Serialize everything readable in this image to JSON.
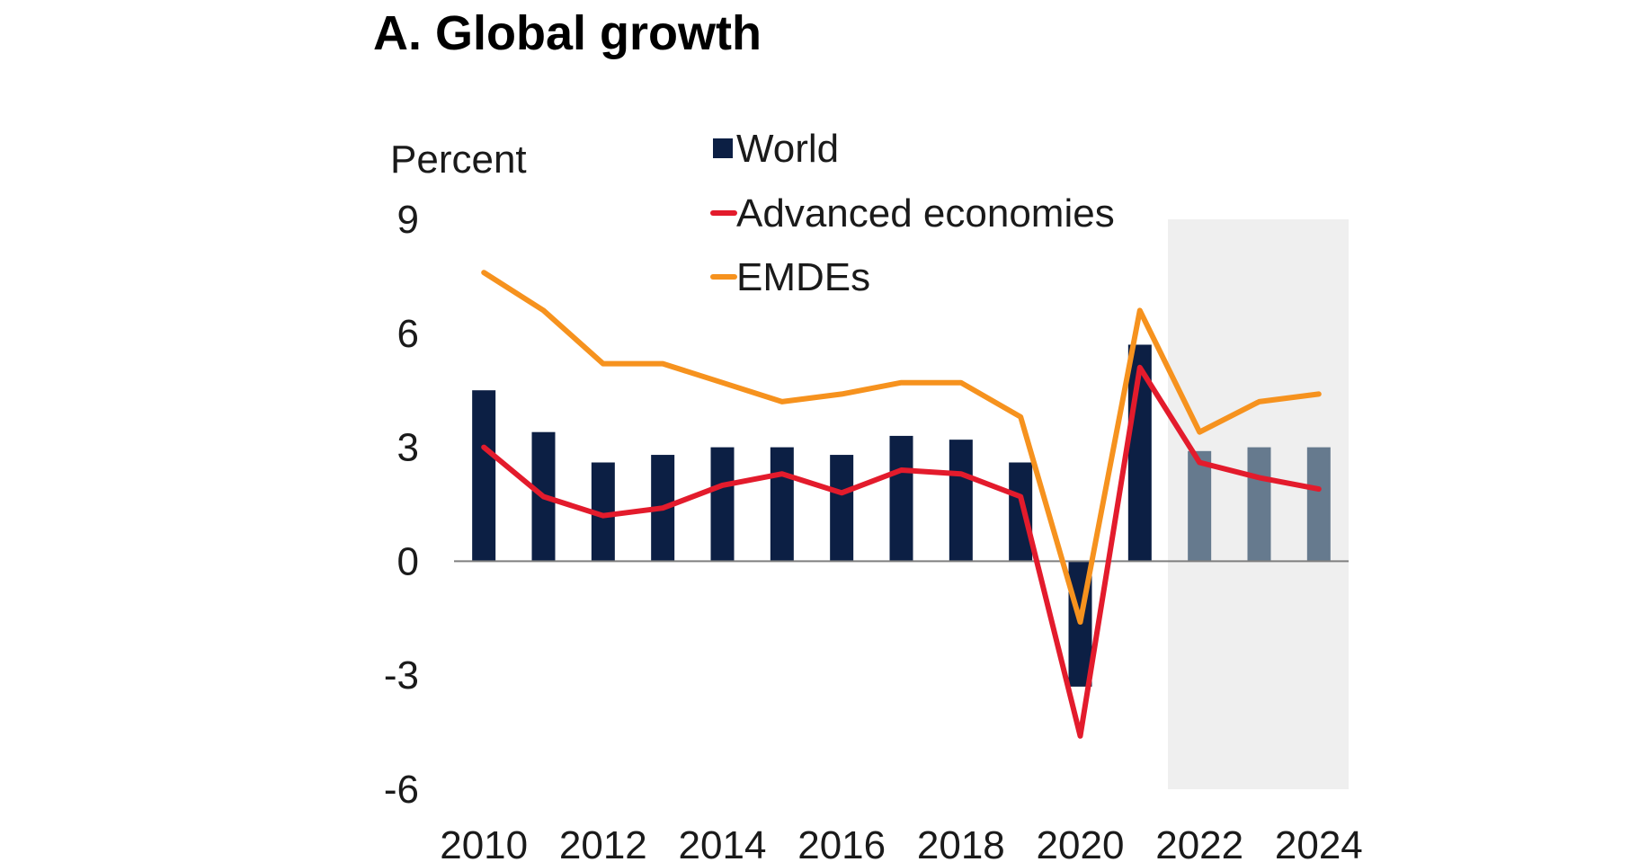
{
  "chart_data": {
    "type": "bar",
    "title": "A. Global growth",
    "ylabel": "Percent",
    "xlabel": "",
    "categories": [
      "2010",
      "2011",
      "2012",
      "2013",
      "2014",
      "2015",
      "2016",
      "2017",
      "2018",
      "2019",
      "2020",
      "2021",
      "2022",
      "2023",
      "2024"
    ],
    "x_tick_labels": [
      "2010",
      "2012",
      "2014",
      "2016",
      "2018",
      "2020",
      "2022",
      "2024"
    ],
    "y_tick_labels": [
      "9",
      "6",
      "3",
      "0",
      "-3",
      "-6"
    ],
    "y_ticks": [
      9,
      6,
      3,
      0,
      -3,
      -6
    ],
    "ylim": [
      -6,
      9
    ],
    "grid": false,
    "legend_placement": "top-center",
    "forecast_shading": {
      "from": "2022",
      "to": "2024",
      "color": "#efefef"
    },
    "series": [
      {
        "name": "World",
        "type": "bar",
        "color": "#0c1f44",
        "forecast_color": "#667a8e",
        "values": [
          4.5,
          3.4,
          2.6,
          2.8,
          3.0,
          3.0,
          2.8,
          3.3,
          3.2,
          2.6,
          -3.3,
          5.7,
          2.9,
          3.0,
          3.0
        ]
      },
      {
        "name": "Advanced economies",
        "type": "line",
        "color": "#e31b2c",
        "values": [
          3.0,
          1.7,
          1.2,
          1.4,
          2.0,
          2.3,
          1.8,
          2.4,
          2.3,
          1.7,
          -4.6,
          5.1,
          2.6,
          2.2,
          1.9
        ]
      },
      {
        "name": "EMDEs",
        "type": "line",
        "color": "#f6921e",
        "values": [
          7.6,
          6.6,
          5.2,
          5.2,
          4.7,
          4.2,
          4.4,
          4.7,
          4.7,
          3.8,
          -1.6,
          6.6,
          3.4,
          4.2,
          4.4
        ]
      }
    ]
  }
}
